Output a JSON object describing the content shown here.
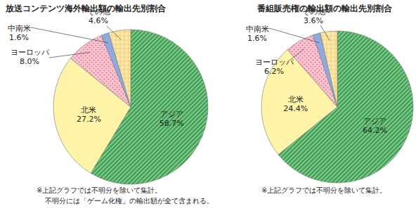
{
  "chart_data": [
    {
      "type": "pie",
      "title": "放送コンテンツ海外輸出額の輸出先別割合",
      "categories": [
        "アジア",
        "北米",
        "ヨーロッパ",
        "中南米",
        "その他"
      ],
      "values": [
        58.7,
        27.2,
        8,
        1.6,
        4.6
      ],
      "value_labels": [
        "58.7%",
        "27.2%",
        "8.0%",
        "1.6%",
        "4.6%"
      ],
      "colors": [
        "#74c682",
        "#fff4a8",
        "#f6c3cf",
        "#8eaae0",
        "#fde8a6"
      ],
      "data_labels": true,
      "annotations": [
        "※上記グラフでは不明分を除いて集計。",
        "不明分には「ゲーム化権」の輸出額が全て含まれる。"
      ]
    },
    {
      "type": "pie",
      "title": "番組販売権の輸出額の輸出先別割合",
      "categories": [
        "アジア",
        "北米",
        "ヨーロッパ",
        "中南米",
        "その他"
      ],
      "values": [
        64.2,
        24.4,
        6.2,
        1.6,
        3.6
      ],
      "value_labels": [
        "64.2%",
        "24.4%",
        "6.2%",
        "1.6%",
        "3.6%"
      ],
      "colors": [
        "#74c682",
        "#fff4a8",
        "#f6c3cf",
        "#8eaae0",
        "#fde8a6"
      ],
      "data_labels": true,
      "annotations": [
        "※上記グラフでは不明分を除いて集計。"
      ]
    }
  ]
}
